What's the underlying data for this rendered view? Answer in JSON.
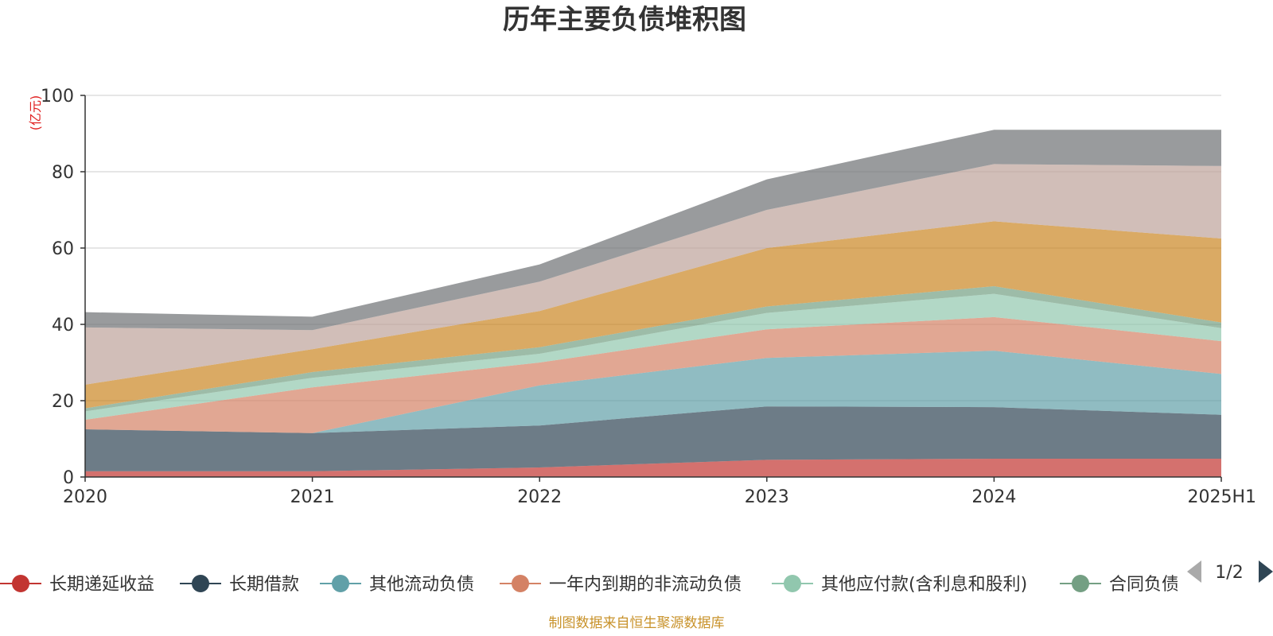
{
  "title": "历年主要负债堆积图",
  "unit_label": "(亿元)",
  "source_note": "制图数据来自恒生聚源数据库",
  "legend": {
    "page_indicator": "1/2",
    "items": [
      {
        "label": "长期递延收益",
        "color": "#c23531"
      },
      {
        "label": "长期借款",
        "color": "#2f4554"
      },
      {
        "label": "其他流动负债",
        "color": "#61a0a8"
      },
      {
        "label": "一年内到期的非流动负债",
        "color": "#d48265"
      },
      {
        "label": "其他应付款(含利息和股利)",
        "color": "#91c7ae"
      },
      {
        "label": "合同负债",
        "color": "#749f83"
      }
    ]
  },
  "chart_data": {
    "type": "area",
    "stacked": true,
    "categories": [
      "2020",
      "2021",
      "2022",
      "2023",
      "2024",
      "2025H1"
    ],
    "ylim": [
      0,
      100
    ],
    "yticks": [
      0,
      20,
      40,
      60,
      80,
      100
    ],
    "grid": true,
    "legend_position": "bottom",
    "series": [
      {
        "name": "长期递延收益",
        "color": "#c23531",
        "values": [
          1.5,
          1.5,
          2.5,
          4.5,
          4.8,
          4.8
        ]
      },
      {
        "name": "长期借款",
        "color": "#2f4554",
        "values": [
          11.0,
          10.0,
          11.0,
          14.0,
          13.5,
          11.5
        ]
      },
      {
        "name": "其他流动负债",
        "color": "#61a0a8",
        "values": [
          0.0,
          0.0,
          10.5,
          12.7,
          14.8,
          10.7
        ]
      },
      {
        "name": "一年内到期的非流动负债",
        "color": "#d48265",
        "values": [
          2.5,
          12.0,
          6.0,
          7.5,
          8.8,
          8.6
        ]
      },
      {
        "name": "其他应付款(含利息和股利)",
        "color": "#91c7ae",
        "values": [
          2.2,
          2.5,
          2.3,
          4.3,
          6.1,
          3.4
        ]
      },
      {
        "name": "合同负债",
        "color": "#749f83",
        "values": [
          0.8,
          1.5,
          1.7,
          1.7,
          2.0,
          1.5
        ]
      },
      {
        "name": "",
        "color": "#ca8622",
        "values": [
          6.2,
          6.0,
          9.5,
          15.3,
          17.0,
          22.0
        ]
      },
      {
        "name": "",
        "color": "#bda29a",
        "values": [
          15.0,
          5.0,
          7.7,
          10.0,
          15.0,
          19.0
        ]
      },
      {
        "name": "",
        "color": "#6e7074",
        "values": [
          4.0,
          3.5,
          4.5,
          8.0,
          9.0,
          9.5
        ]
      }
    ]
  }
}
